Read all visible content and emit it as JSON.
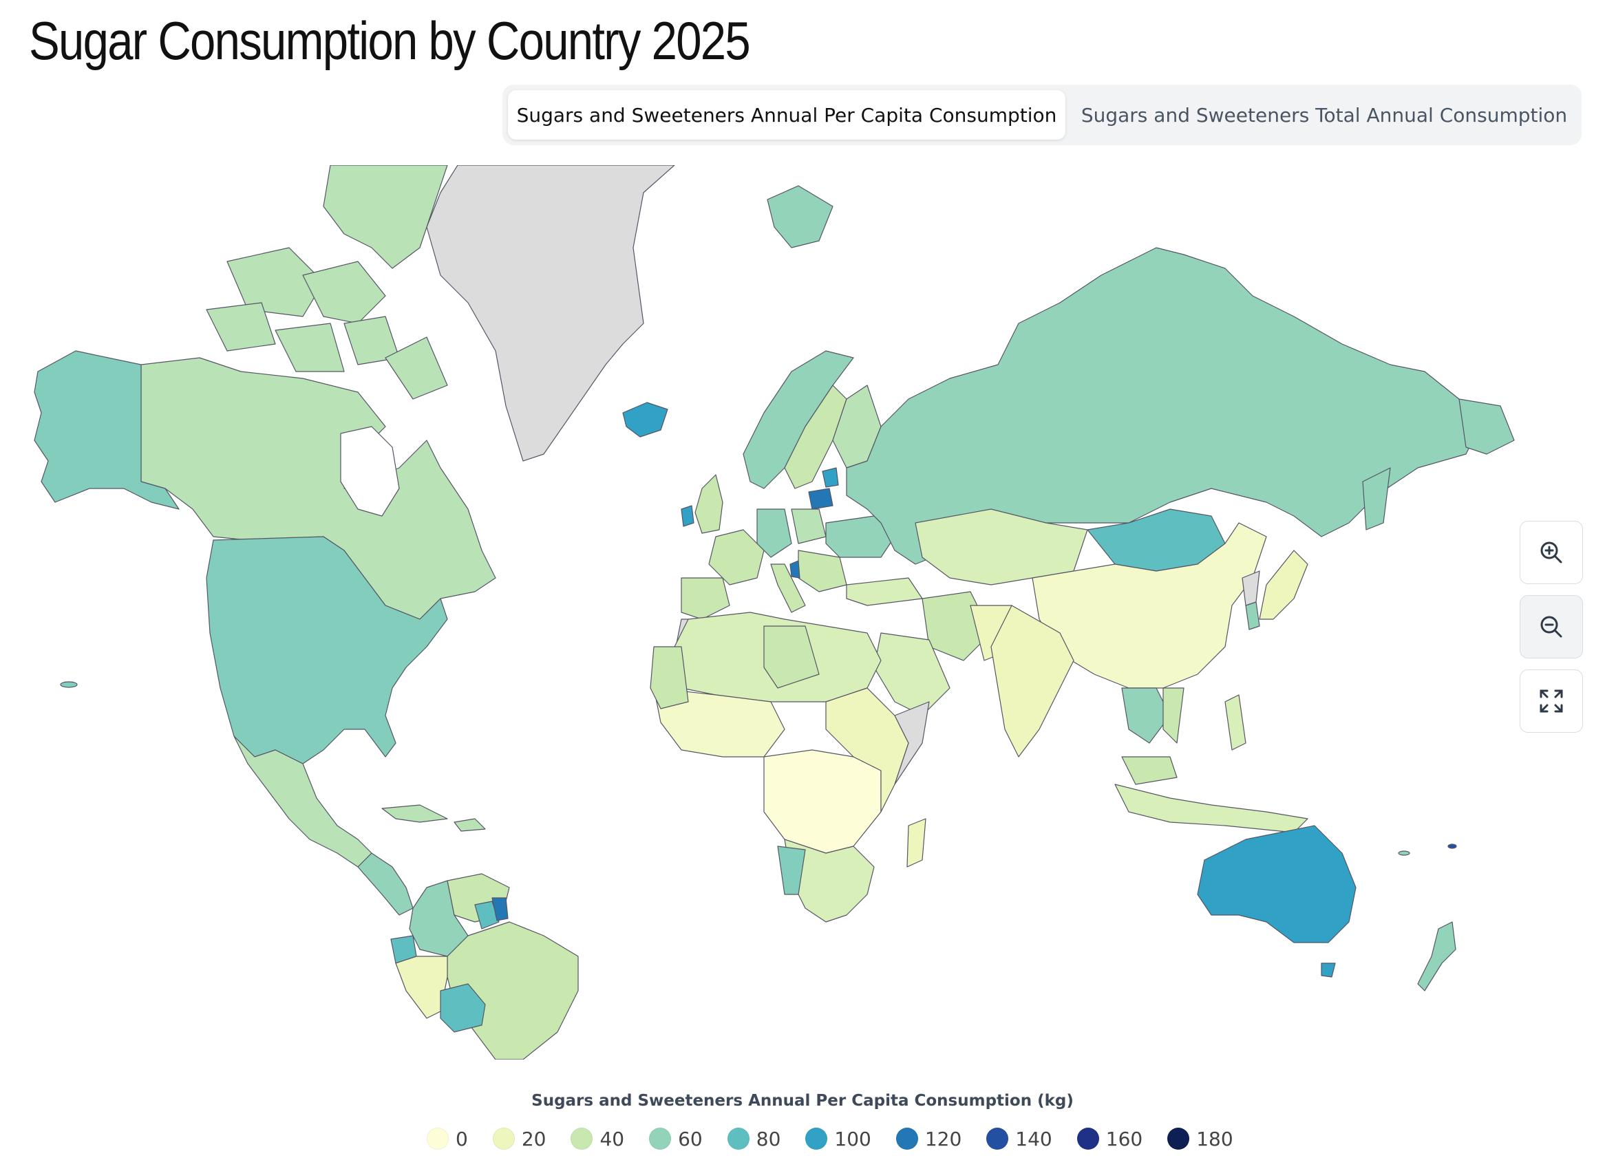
{
  "title": "Sugar Consumption by Country 2025",
  "tabs": [
    {
      "label": "Sugars and Sweeteners Annual Per Capita Consumption",
      "active": true
    },
    {
      "label": "Sugars and Sweeteners Total Annual Consumption",
      "active": false
    }
  ],
  "controls": {
    "zoom_in": "zoom-in-icon",
    "zoom_out": "zoom-out-icon",
    "fullscreen": "fullscreen-icon"
  },
  "legend": {
    "title": "Sugars and Sweeteners Annual Per Capita Consumption (kg)",
    "items": [
      {
        "label": "0",
        "color": "#fdfdd7"
      },
      {
        "label": "20",
        "color": "#eef5bd"
      },
      {
        "label": "40",
        "color": "#c8e8b0"
      },
      {
        "label": "60",
        "color": "#93d3ba"
      },
      {
        "label": "80",
        "color": "#5fbfc0"
      },
      {
        "label": "100",
        "color": "#31a1c6"
      },
      {
        "label": "120",
        "color": "#2277b4"
      },
      {
        "label": "140",
        "color": "#2350a0"
      },
      {
        "label": "160",
        "color": "#1f3187"
      },
      {
        "label": "180",
        "color": "#0e1f54"
      }
    ]
  },
  "no_data_color": "#dcdcdc"
}
